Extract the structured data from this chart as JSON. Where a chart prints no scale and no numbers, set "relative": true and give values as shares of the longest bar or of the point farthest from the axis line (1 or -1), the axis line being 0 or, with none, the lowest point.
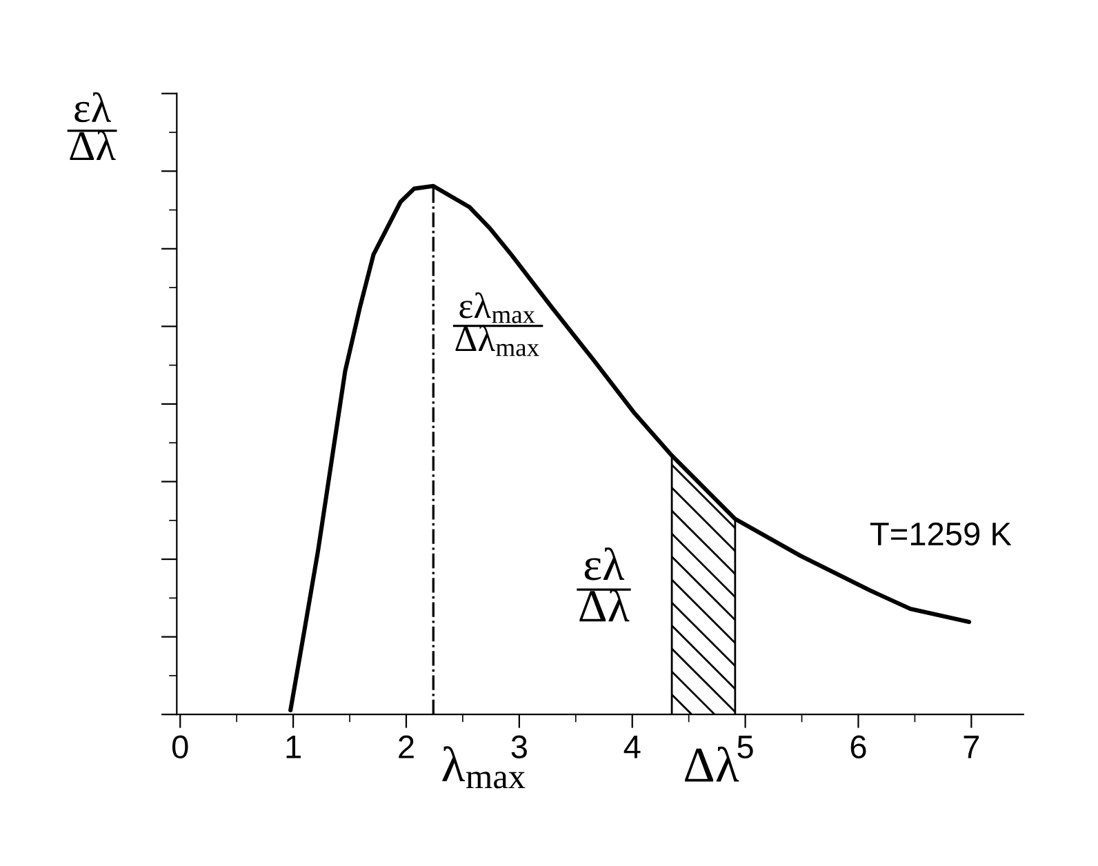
{
  "chart_data": {
    "type": "line",
    "relative": true,
    "ylabel": "ελ\nΔλ",
    "xlim": [
      -0.03,
      7.46
    ],
    "xticks": [
      0,
      {
        "value": 0.5,
        "label": null
      },
      1,
      {
        "value": 1.5,
        "label": null
      },
      2,
      {
        "value": 2.5,
        "label": null
      },
      3,
      {
        "value": 3.5,
        "label": null
      },
      4,
      {
        "value": 4.5,
        "label": null
      },
      5,
      {
        "value": 5.5,
        "label": null
      },
      6,
      {
        "value": 6.5,
        "label": null
      },
      7
    ],
    "series": [
      {
        "color": "#000000",
        "x": [
          0.976,
          1.1,
          1.22,
          1.34,
          1.46,
          1.59,
          1.71,
          1.95,
          2.07,
          2.24,
          2.56,
          2.74,
          2.93,
          3.29,
          3.66,
          4.02,
          4.35,
          4.63,
          4.91,
          5.49,
          6.1,
          6.46,
          6.98
        ],
        "values": [
          0.008,
          0.16,
          0.31,
          0.48,
          0.65,
          0.77,
          0.87,
          0.97,
          0.995,
          1.0,
          0.96,
          0.92,
          0.87,
          0.77,
          0.67,
          0.57,
          0.49,
          0.43,
          0.37,
          0.3,
          0.235,
          0.2,
          0.175
        ]
      },
      {
        "color": "#000000",
        "line_style": "dashdot",
        "x": [
          2.24,
          2.24
        ],
        "values": [
          0,
          1.0
        ]
      }
    ],
    "bands": [
      {
        "axis": "x",
        "from": 4.35,
        "to": 4.91
      }
    ],
    "annotations": [
      {
        "text": "ελ$_{max}$\nΔλ$_{max}$",
        "x": 2.56,
        "y": 0.96
      },
      {
        "text": "ελ\nΔλ",
        "x": 4.35,
        "y": 0.49
      },
      {
        "text": "T=1259 K",
        "x": 6.1,
        "y": 0.235
      },
      {
        "text": "λ$_{max}$",
        "x": 2.24,
        "y": 0
      },
      {
        "text": "Δλ",
        "x": 4.63,
        "y": 0
      }
    ]
  }
}
